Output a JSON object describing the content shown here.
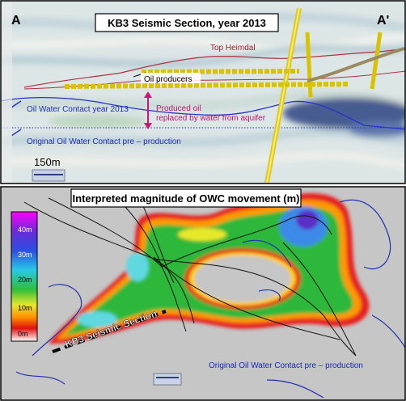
{
  "top_panel": {
    "label_left": "A",
    "label_right": "A'",
    "title": "KB3 Seismic Section, year 2013",
    "top_heimdal": "Top Heimdal",
    "oil_producers": "Oil producers",
    "produced_oil": [
      "Produced oil",
      "replaced by water from aquifer"
    ],
    "owc_2013": "Oil Water Contact  year 2013",
    "owc_original": "Original Oil Water Contact  pre – production",
    "scale": "150m"
  },
  "bottom_panel": {
    "title": "Interpreted magnitude of OWC movement (m)",
    "colorbar_labels": [
      "40m",
      "30m",
      "20m",
      "10m",
      "0m"
    ],
    "section_label": "KB3 Seismic Section",
    "owc_original": "Original Oil Water Contact  pre – production"
  }
}
